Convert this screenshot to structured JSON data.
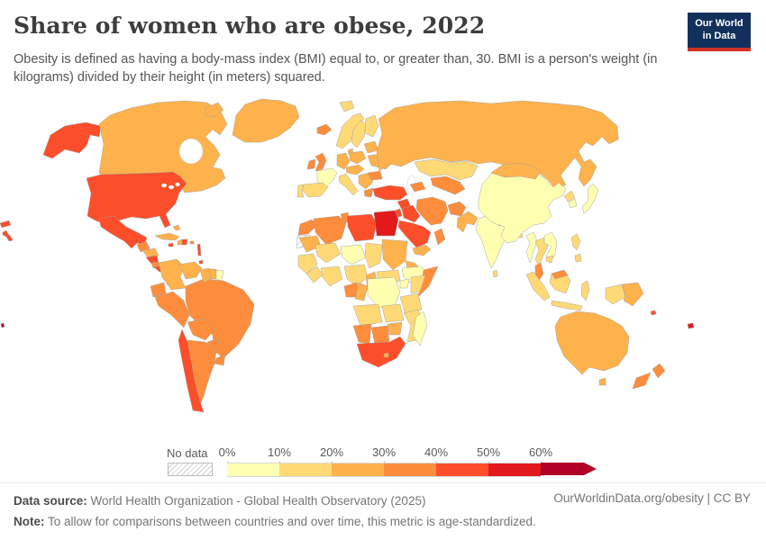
{
  "header": {
    "title": "Share of women who are obese, 2022",
    "subtitle": "Obesity is defined as having a body-mass index (BMI) equal to, or greater than, 30. BMI is a person's weight (in kilograms) divided by their height (in meters) squared.",
    "logo_line1": "Our World",
    "logo_line2": "in Data",
    "logo_bg": "#12305c",
    "logo_accent": "#cf3328"
  },
  "legend": {
    "no_data_label": "No data",
    "tick_labels": [
      "0%",
      "10%",
      "20%",
      "30%",
      "40%",
      "50%",
      "60%"
    ]
  },
  "footer": {
    "source_label": "Data source:",
    "source_text": " World Health Organization - Global Health Observatory (2025)",
    "note_label": "Note:",
    "note_text": " To allow for comparisons between countries and over time, this metric is age-standardized.",
    "attribution": "OurWorldinData.org/obesity | CC BY"
  },
  "chart_data": {
    "type": "choropleth-map",
    "title": "Share of women who are obese, 2022",
    "metric": "Share of women who are obese (age-standardized, BMI >= 30)",
    "year": 2022,
    "unit": "%",
    "projection": "world",
    "bins": [
      {
        "range": "0-10%",
        "color": "#FFFFB2"
      },
      {
        "range": "10-20%",
        "color": "#FED976"
      },
      {
        "range": "20-30%",
        "color": "#FEB24C"
      },
      {
        "range": "30-40%",
        "color": "#FD8D3C"
      },
      {
        "range": "40-50%",
        "color": "#FC4E2A"
      },
      {
        "range": "50-60%",
        "color": "#E31A1C"
      },
      {
        "range": "60%+",
        "color": "#B10026"
      }
    ],
    "no_data": {
      "label": "No data",
      "pattern": "diagonal-hatch",
      "stroke": "#bdbdbd"
    },
    "countries": {
      "united-states": 4,
      "alaska": 4,
      "hawaii": 4,
      "aleutians": 4,
      "canada": 2,
      "greenland": 2,
      "baffin-island": 2,
      "iceland": 3,
      "svalbard": 1,
      "mexico": 4,
      "guatemala": 3,
      "honduras": 2,
      "nicaragua": 4,
      "costa-rica": 3,
      "panama": 4,
      "cuba": 2,
      "bahamas": 2,
      "jamaica": 4,
      "haiti": 2,
      "dominican-republic": 4,
      "puerto-rico": 3,
      "lesser-antilles": 4,
      "trinidad": 4,
      "colombia": 2,
      "venezuela": 2,
      "guyana": 2,
      "suriname": 2,
      "french-guiana": 0,
      "ecuador": 3,
      "peru": 3,
      "brazil": 3,
      "bolivia": 3,
      "paraguay": 3,
      "uruguay": 3,
      "chile": 4,
      "argentina": 3,
      "united-kingdom": 3,
      "ireland": 3,
      "france": 0,
      "spain": 1,
      "portugal": 1,
      "norway": 1,
      "sweden": 1,
      "finland": 1,
      "denmark": 2,
      "germany": 2,
      "poland": 2,
      "central-europe": 2,
      "italy": 1,
      "balkans": 2,
      "greece": 3,
      "romania": 3,
      "ukraine": 2,
      "belarus-baltics": 2,
      "russia": 2,
      "kazakhstan": 1,
      "central-asia": 3,
      "caucasus": 3,
      "turkey": 4,
      "syria": 4,
      "iraq": 4,
      "jordan-israel": 4,
      "saudi-arabia": 4,
      "yemen": 2,
      "oman": 3,
      "iran": 3,
      "afghanistan": 3,
      "pakistan": 2,
      "india": 0,
      "nepal": 1,
      "bangladesh": 1,
      "sri-lanka": 1,
      "china": 0,
      "mongolia": 2,
      "north-korea": 1,
      "south-korea": 0,
      "japan": 0,
      "myanmar": 0,
      "thailand": 1,
      "vietnam-laos": 0,
      "cambodia": 1,
      "malaysia": 3,
      "malaysia-borneo": 3,
      "sumatra": 1,
      "java": 1,
      "borneo": 1,
      "sulawesi": 1,
      "west-new-guinea": 1,
      "papua-new-guinea": 2,
      "philippines": 1,
      "mindanao": 1,
      "australia": 2,
      "tasmania": 2,
      "new-zealand-north": 3,
      "new-zealand-south": 3,
      "fiji": 5,
      "solomon-islands": 4,
      "pacific-island": 6,
      "morocco": 3,
      "western-sahara": "no-data",
      "algeria": 3,
      "tunisia": 3,
      "libya": 4,
      "egypt": 5,
      "mauritania": 2,
      "mali": 1,
      "niger": 0,
      "chad": 1,
      "sudan": 2,
      "eritrea": 2,
      "ethiopia": 0,
      "somalia": 3,
      "senegal-region": 1,
      "guinea-region": 1,
      "ivory-ghana": 1,
      "nigeria": 1,
      "cameroon": 2,
      "central-african-republic": 1,
      "gabon": 3,
      "congo": 2,
      "dr-congo": 0,
      "uganda": 0,
      "kenya": 1,
      "tanzania": 1,
      "angola": 1,
      "zambia": 1,
      "mozambique": 1,
      "zimbabwe": 2,
      "botswana": 3,
      "namibia": 3,
      "south-africa": 4,
      "lesotho": 2,
      "madagascar": 0
    }
  }
}
